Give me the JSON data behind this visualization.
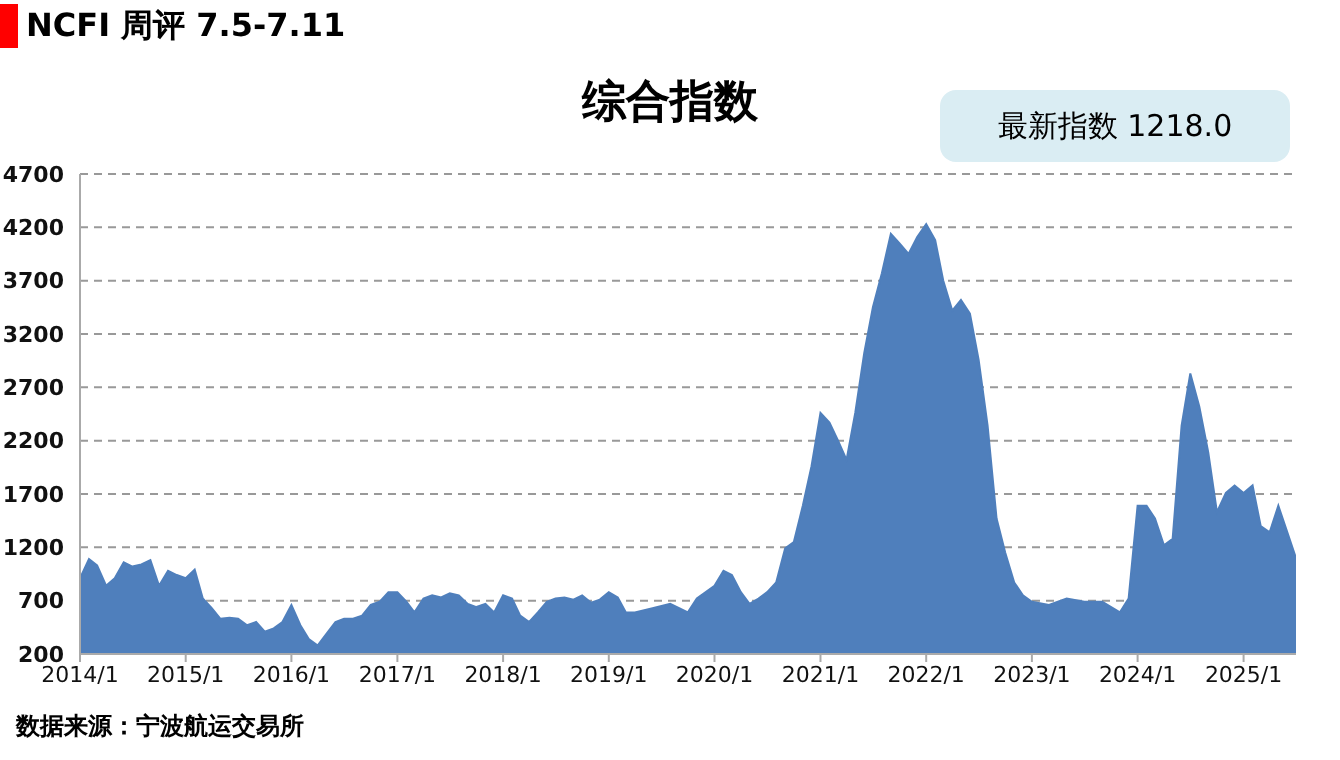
{
  "chart_data": {
    "type": "area",
    "title": "综合指数",
    "subtitle": "NCFI 周评 7.5-7.11",
    "annotations": [
      "最新指数 1218.0",
      "数据来源：宁波航运交易所"
    ],
    "x": [
      "2014-01",
      "2014-02",
      "2014-03",
      "2014-04",
      "2014-05",
      "2014-06",
      "2014-07",
      "2014-08",
      "2014-09",
      "2014-10",
      "2014-11",
      "2014-12",
      "2015-01",
      "2015-02",
      "2015-03",
      "2015-04",
      "2015-05",
      "2015-06",
      "2015-07",
      "2015-08",
      "2015-09",
      "2015-10",
      "2015-11",
      "2015-12",
      "2016-01",
      "2016-02",
      "2016-03",
      "2016-04",
      "2016-05",
      "2016-06",
      "2016-07",
      "2016-08",
      "2016-09",
      "2016-10",
      "2016-11",
      "2016-12",
      "2017-01",
      "2017-02",
      "2017-03",
      "2017-04",
      "2017-05",
      "2017-06",
      "2017-07",
      "2017-08",
      "2017-09",
      "2017-10",
      "2017-11",
      "2017-12",
      "2018-01",
      "2018-02",
      "2018-03",
      "2018-04",
      "2018-05",
      "2018-06",
      "2018-07",
      "2018-08",
      "2018-09",
      "2018-10",
      "2018-11",
      "2018-12",
      "2019-01",
      "2019-02",
      "2019-03",
      "2019-04",
      "2019-06",
      "2019-08",
      "2019-10",
      "2019-11",
      "2020-01",
      "2020-02",
      "2020-03",
      "2020-04",
      "2020-05",
      "2020-06",
      "2020-07",
      "2020-08",
      "2020-09",
      "2020-10",
      "2020-11",
      "2020-12",
      "2021-01",
      "2021-02",
      "2021-03",
      "2021-04",
      "2021-05",
      "2021-06",
      "2021-07",
      "2021-08",
      "2021-09",
      "2021-10",
      "2021-11",
      "2021-12",
      "2022-01",
      "2022-02",
      "2022-03",
      "2022-04",
      "2022-05",
      "2022-06",
      "2022-07",
      "2022-08",
      "2022-09",
      "2022-10",
      "2022-11",
      "2022-12",
      "2023-01",
      "2023-03",
      "2023-05",
      "2023-07",
      "2023-09",
      "2023-11",
      "2023-12",
      "2024-01",
      "2024-02",
      "2024-03",
      "2024-04",
      "2024-05",
      "2024-06",
      "2024-07",
      "2024-08",
      "2024-09",
      "2024-10",
      "2024-11",
      "2024-12",
      "2025-01",
      "2025-02",
      "2025-03",
      "2025-04",
      "2025-05",
      "2025-06",
      "2025-07"
    ],
    "series": [
      {
        "color": "#4f7fbc",
        "values": [
          910,
          1090,
          1030,
          840,
          910,
          1060,
          1020,
          1040,
          1080,
          840,
          980,
          940,
          910,
          990,
          720,
          630,
          530,
          540,
          530,
          470,
          500,
          410,
          440,
          500,
          660,
          470,
          340,
          280,
          390,
          500,
          530,
          530,
          560,
          660,
          690,
          780,
          780,
          690,
          590,
          720,
          750,
          730,
          770,
          750,
          670,
          640,
          670,
          590,
          750,
          720,
          560,
          500,
          590,
          690,
          720,
          730,
          710,
          750,
          680,
          710,
          780,
          730,
          590,
          590,
          630,
          670,
          590,
          720,
          840,
          980,
          940,
          780,
          670,
          720,
          780,
          870,
          1190,
          1250,
          1590,
          1960,
          2460,
          2370,
          2210,
          2020,
          2460,
          3020,
          3450,
          3770,
          4140,
          4050,
          3950,
          4110,
          4230,
          4080,
          3700,
          3420,
          3520,
          3390,
          2960,
          2340,
          1470,
          1150,
          870,
          750,
          690,
          660,
          720,
          690,
          690,
          590,
          720,
          1590,
          1590,
          1470,
          1220,
          1280,
          2340,
          2830,
          2520,
          2090,
          1530,
          1710,
          1780,
          1710,
          1780,
          1400,
          1340,
          1590,
          1340,
          1100
        ]
      }
    ],
    "xlim": [
      "2014-01",
      "2025-07"
    ],
    "xticks": [
      {
        "value": "2014-01",
        "label": "2014/1"
      },
      {
        "value": "2015-01",
        "label": "2015/1"
      },
      {
        "value": "2016-01",
        "label": "2016/1"
      },
      {
        "value": "2017-01",
        "label": "2017/1"
      },
      {
        "value": "2018-01",
        "label": "2018/1"
      },
      {
        "value": "2019-01",
        "label": "2019/1"
      },
      {
        "value": "2020-01",
        "label": "2020/1"
      },
      {
        "value": "2021-01",
        "label": "2021/1"
      },
      {
        "value": "2022-01",
        "label": "2022/1"
      },
      {
        "value": "2023-01",
        "label": "2023/1"
      },
      {
        "value": "2024-01",
        "label": "2024/1"
      },
      {
        "value": "2025-01",
        "label": "2025/1"
      }
    ],
    "ylim": [
      200,
      4700
    ],
    "yticks": [
      200,
      700,
      1200,
      1700,
      2200,
      2700,
      3200,
      3700,
      4200,
      4700
    ],
    "grid": "y",
    "legend": false
  }
}
